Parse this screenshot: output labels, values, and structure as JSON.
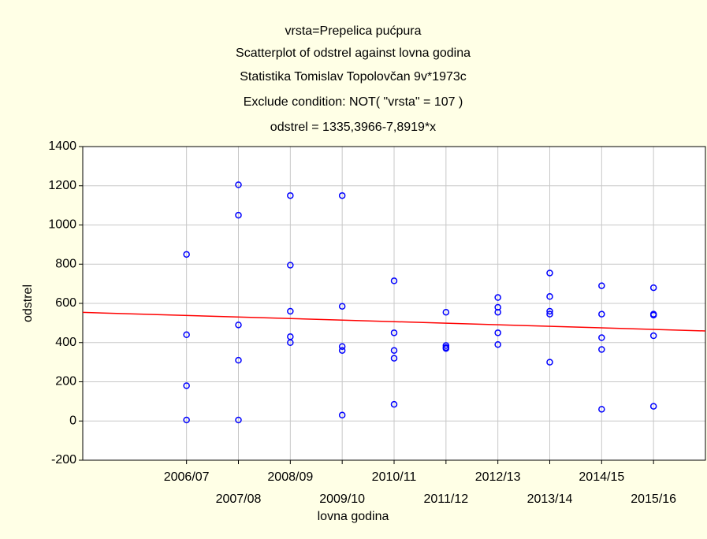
{
  "chart_data": {
    "type": "scatter",
    "titles": [
      "vrsta=Prepelica pućpura",
      "Scatterplot of odstrel against lovna godina",
      "Statistika Tomislav Topolovčan 9v*1973c",
      "Exclude condition: NOT( \"vrsta\" = 107 )",
      "odstrel = 1335,3966-7,8919*x"
    ],
    "x_label": "lovna godina",
    "y_label": "odstrel",
    "xlim": [
      99,
      111
    ],
    "ylim": [
      -200,
      1400
    ],
    "xticks": [
      {
        "value": 101,
        "label": "2006/07"
      },
      {
        "value": 102,
        "label": "2007/08"
      },
      {
        "value": 103,
        "label": "2008/09"
      },
      {
        "value": 104,
        "label": "2009/10"
      },
      {
        "value": 105,
        "label": "2010/11"
      },
      {
        "value": 106,
        "label": "2011/12"
      },
      {
        "value": 107,
        "label": "2012/13"
      },
      {
        "value": 108,
        "label": "2013/14"
      },
      {
        "value": 109,
        "label": "2014/15"
      },
      {
        "value": 110,
        "label": "2015/16"
      }
    ],
    "yticks": [
      -200,
      0,
      200,
      400,
      600,
      800,
      1000,
      1200,
      1400
    ],
    "grid": true,
    "series": [
      {
        "color": "#0000ff",
        "x": [
          101,
          101,
          101,
          101,
          102,
          102,
          102,
          102,
          102,
          103,
          103,
          103,
          103,
          103,
          104,
          104,
          104,
          104,
          104,
          105,
          105,
          105,
          105,
          105,
          106,
          106,
          106,
          106,
          107,
          107,
          107,
          107,
          107,
          108,
          108,
          108,
          108,
          108,
          109,
          109,
          109,
          109,
          109,
          110,
          110,
          110,
          110,
          110
        ],
        "values": [
          850,
          440,
          180,
          5,
          1205,
          1050,
          490,
          310,
          5,
          1150,
          795,
          560,
          430,
          400,
          1150,
          585,
          380,
          360,
          30,
          715,
          450,
          360,
          320,
          85,
          555,
          385,
          375,
          370,
          630,
          580,
          555,
          450,
          390,
          755,
          635,
          560,
          545,
          300,
          690,
          545,
          425,
          365,
          60,
          680,
          545,
          540,
          435,
          75
        ]
      }
    ],
    "fit": {
      "intercept": 1335.3966,
      "slope": -7.8919,
      "color": "#ff0000"
    }
  }
}
